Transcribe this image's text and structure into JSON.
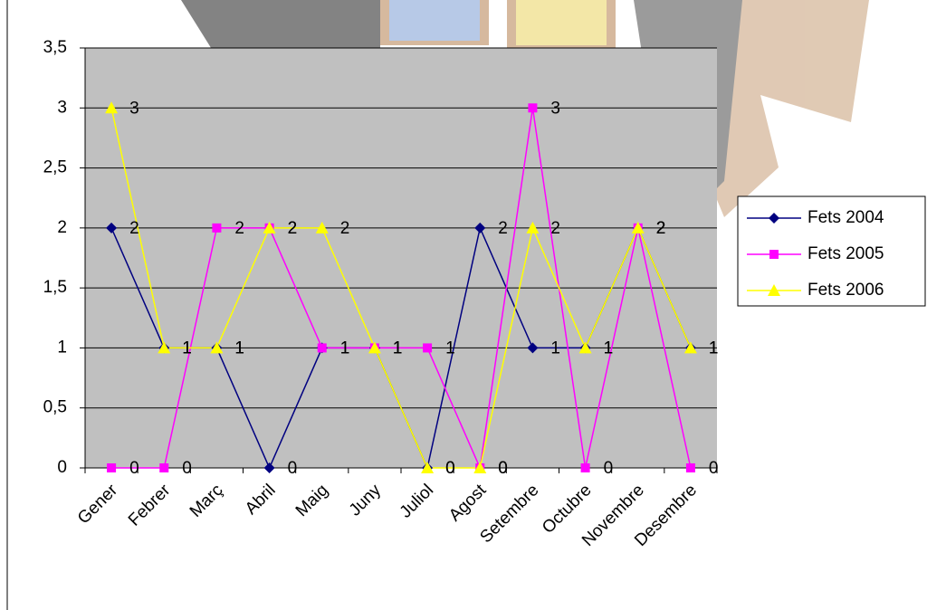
{
  "chart_data": {
    "type": "line",
    "categories": [
      "Gener",
      "Febrer",
      "Març",
      "Abril",
      "Maig",
      "Juny",
      "Juliol",
      "Agost",
      "Setembre",
      "Octubre",
      "Novembre",
      "Desembre"
    ],
    "series": [
      {
        "name": "Fets 2004",
        "color": "#000080",
        "marker": "diamond",
        "values": [
          2,
          1,
          1,
          0,
          1,
          1,
          0,
          2,
          1,
          1,
          2,
          1
        ]
      },
      {
        "name": "Fets 2005",
        "color": "#ff00ff",
        "marker": "square",
        "values": [
          0,
          0,
          2,
          2,
          1,
          1,
          1,
          0,
          3,
          0,
          2,
          0
        ]
      },
      {
        "name": "Fets 2006",
        "color": "#ffff00",
        "marker": "triangle",
        "values": [
          3,
          1,
          1,
          2,
          2,
          1,
          0,
          0,
          2,
          1,
          2,
          1
        ]
      }
    ],
    "ylim": [
      0,
      3.5
    ],
    "yticks": [
      0,
      {
        "value": 0.5,
        "label": "0,5"
      },
      1,
      {
        "value": 1.5,
        "label": "1,5"
      },
      2,
      {
        "value": 2.5,
        "label": "2,5"
      },
      3,
      {
        "value": 3.5,
        "label": "3,5"
      }
    ],
    "grid": true,
    "plot_background": "#c0c0c0",
    "legend": "right"
  }
}
